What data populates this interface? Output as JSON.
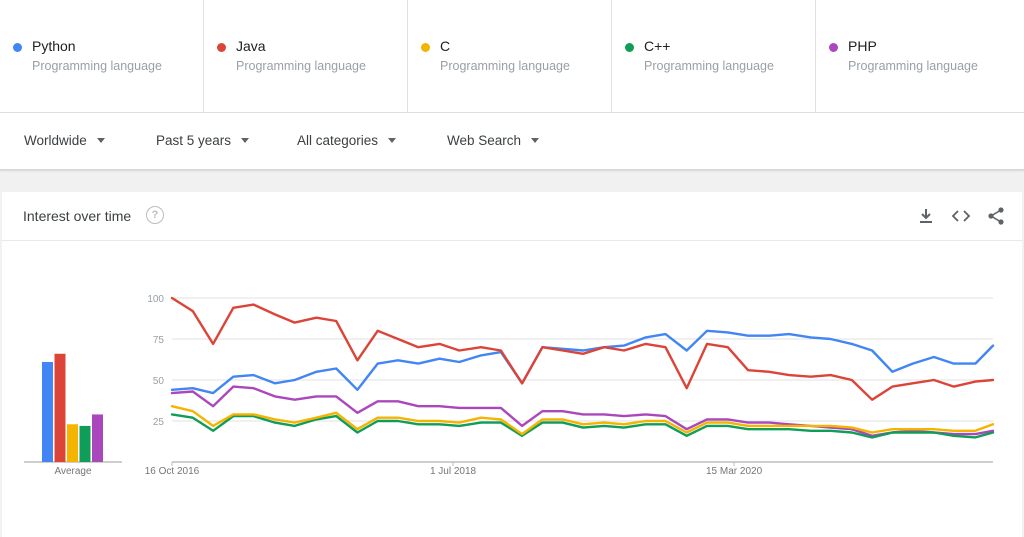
{
  "terms": [
    {
      "name": "Python",
      "category": "Programming language",
      "color": "#4285f4"
    },
    {
      "name": "Java",
      "category": "Programming language",
      "color": "#db4437"
    },
    {
      "name": "C",
      "category": "Programming language",
      "color": "#f4b400"
    },
    {
      "name": "C++",
      "category": "Programming language",
      "color": "#0f9d58"
    },
    {
      "name": "PHP",
      "category": "Programming language",
      "color": "#ab47bc"
    }
  ],
  "filters": {
    "region": "Worldwide",
    "period": "Past 5 years",
    "category": "All categories",
    "property": "Web Search"
  },
  "card": {
    "title": "Interest over time",
    "help_icon": "?",
    "icons": [
      "download-icon",
      "embed-icon",
      "share-icon"
    ]
  },
  "chart_data": [
    {
      "type": "bar",
      "categories": [
        "Python",
        "Java",
        "C",
        "C++",
        "PHP"
      ],
      "values": [
        61,
        66,
        23,
        22,
        29
      ],
      "xlabel": "Average",
      "ylim": [
        0,
        100
      ]
    },
    {
      "type": "line",
      "x_start": "2016-10-16",
      "x_end": "2021-10-10",
      "xticks": [
        "16 Oct 2016",
        "1 Jul 2018",
        "15 Mar 2020"
      ],
      "yticks": [
        25,
        50,
        75,
        100
      ],
      "ylim": [
        0,
        100
      ],
      "grid": true,
      "series": [
        {
          "name": "Python",
          "color": "#4285f4",
          "x": [
            "2016-10-16",
            "2016-12-01",
            "2017-01-15",
            "2017-03-01",
            "2017-04-15",
            "2017-06-01",
            "2017-07-15",
            "2017-09-01",
            "2017-10-15",
            "2017-12-01",
            "2018-01-15",
            "2018-03-01",
            "2018-04-15",
            "2018-06-01",
            "2018-07-15",
            "2018-09-01",
            "2018-10-15",
            "2018-12-01",
            "2019-01-15",
            "2019-03-01",
            "2019-04-15",
            "2019-06-01",
            "2019-07-15",
            "2019-09-01",
            "2019-10-15",
            "2019-12-01",
            "2020-01-15",
            "2020-03-01",
            "2020-04-15",
            "2020-06-01",
            "2020-07-15",
            "2020-09-01",
            "2020-10-15",
            "2020-12-01",
            "2021-01-15",
            "2021-03-01",
            "2021-04-15",
            "2021-06-01",
            "2021-07-15",
            "2021-09-01",
            "2021-10-10"
          ],
          "y": [
            44,
            45,
            42,
            52,
            53,
            48,
            50,
            55,
            57,
            44,
            60,
            62,
            60,
            63,
            61,
            65,
            67,
            48,
            70,
            69,
            68,
            70,
            71,
            76,
            78,
            68,
            80,
            79,
            77,
            77,
            78,
            76,
            75,
            72,
            68,
            55,
            60,
            64,
            60,
            60,
            71
          ]
        },
        {
          "name": "Java",
          "color": "#db4437",
          "x": [
            "2016-10-16",
            "2016-12-01",
            "2017-01-15",
            "2017-03-01",
            "2017-04-15",
            "2017-06-01",
            "2017-07-15",
            "2017-09-01",
            "2017-10-15",
            "2017-12-01",
            "2018-01-15",
            "2018-03-01",
            "2018-04-15",
            "2018-06-01",
            "2018-07-15",
            "2018-09-01",
            "2018-10-15",
            "2018-12-01",
            "2019-01-15",
            "2019-03-01",
            "2019-04-15",
            "2019-06-01",
            "2019-07-15",
            "2019-09-01",
            "2019-10-15",
            "2019-12-01",
            "2020-01-15",
            "2020-03-01",
            "2020-04-15",
            "2020-06-01",
            "2020-07-15",
            "2020-09-01",
            "2020-10-15",
            "2020-12-01",
            "2021-01-15",
            "2021-03-01",
            "2021-04-15",
            "2021-06-01",
            "2021-07-15",
            "2021-09-01",
            "2021-10-10"
          ],
          "y": [
            100,
            92,
            72,
            94,
            96,
            90,
            85,
            88,
            86,
            62,
            80,
            75,
            70,
            72,
            68,
            70,
            68,
            48,
            70,
            68,
            66,
            70,
            68,
            72,
            70,
            45,
            72,
            70,
            56,
            55,
            53,
            52,
            53,
            50,
            38,
            46,
            48,
            50,
            46,
            49,
            50
          ]
        },
        {
          "name": "C",
          "color": "#f4b400",
          "x": [
            "2016-10-16",
            "2016-12-01",
            "2017-01-15",
            "2017-03-01",
            "2017-04-15",
            "2017-06-01",
            "2017-07-15",
            "2017-09-01",
            "2017-10-15",
            "2017-12-01",
            "2018-01-15",
            "2018-03-01",
            "2018-04-15",
            "2018-06-01",
            "2018-07-15",
            "2018-09-01",
            "2018-10-15",
            "2018-12-01",
            "2019-01-15",
            "2019-03-01",
            "2019-04-15",
            "2019-06-01",
            "2019-07-15",
            "2019-09-01",
            "2019-10-15",
            "2019-12-01",
            "2020-01-15",
            "2020-03-01",
            "2020-04-15",
            "2020-06-01",
            "2020-07-15",
            "2020-09-01",
            "2020-10-15",
            "2020-12-01",
            "2021-01-15",
            "2021-03-01",
            "2021-04-15",
            "2021-06-01",
            "2021-07-15",
            "2021-09-01",
            "2021-10-10"
          ],
          "y": [
            34,
            31,
            22,
            29,
            29,
            26,
            24,
            27,
            30,
            20,
            27,
            27,
            25,
            25,
            24,
            27,
            26,
            17,
            26,
            26,
            23,
            24,
            23,
            25,
            25,
            18,
            24,
            24,
            22,
            22,
            22,
            22,
            22,
            21,
            18,
            20,
            20,
            20,
            19,
            19,
            23
          ]
        },
        {
          "name": "C++",
          "color": "#0f9d58",
          "x": [
            "2016-10-16",
            "2016-12-01",
            "2017-01-15",
            "2017-03-01",
            "2017-04-15",
            "2017-06-01",
            "2017-07-15",
            "2017-09-01",
            "2017-10-15",
            "2017-12-01",
            "2018-01-15",
            "2018-03-01",
            "2018-04-15",
            "2018-06-01",
            "2018-07-15",
            "2018-09-01",
            "2018-10-15",
            "2018-12-01",
            "2019-01-15",
            "2019-03-01",
            "2019-04-15",
            "2019-06-01",
            "2019-07-15",
            "2019-09-01",
            "2019-10-15",
            "2019-12-01",
            "2020-01-15",
            "2020-03-01",
            "2020-04-15",
            "2020-06-01",
            "2020-07-15",
            "2020-09-01",
            "2020-10-15",
            "2020-12-01",
            "2021-01-15",
            "2021-03-01",
            "2021-04-15",
            "2021-06-01",
            "2021-07-15",
            "2021-09-01",
            "2021-10-10"
          ],
          "y": [
            29,
            27,
            19,
            28,
            28,
            24,
            22,
            26,
            28,
            18,
            25,
            25,
            23,
            23,
            22,
            24,
            24,
            16,
            24,
            24,
            21,
            22,
            21,
            23,
            23,
            16,
            22,
            22,
            20,
            20,
            20,
            19,
            19,
            18,
            15,
            18,
            18,
            18,
            16,
            15,
            18
          ]
        },
        {
          "name": "PHP",
          "color": "#ab47bc",
          "x": [
            "2016-10-16",
            "2016-12-01",
            "2017-01-15",
            "2017-03-01",
            "2017-04-15",
            "2017-06-01",
            "2017-07-15",
            "2017-09-01",
            "2017-10-15",
            "2017-12-01",
            "2018-01-15",
            "2018-03-01",
            "2018-04-15",
            "2018-06-01",
            "2018-07-15",
            "2018-09-01",
            "2018-10-15",
            "2018-12-01",
            "2019-01-15",
            "2019-03-01",
            "2019-04-15",
            "2019-06-01",
            "2019-07-15",
            "2019-09-01",
            "2019-10-15",
            "2019-12-01",
            "2020-01-15",
            "2020-03-01",
            "2020-04-15",
            "2020-06-01",
            "2020-07-15",
            "2020-09-01",
            "2020-10-15",
            "2020-12-01",
            "2021-01-15",
            "2021-03-01",
            "2021-04-15",
            "2021-06-01",
            "2021-07-15",
            "2021-09-01",
            "2021-10-10"
          ],
          "y": [
            42,
            43,
            34,
            46,
            45,
            40,
            38,
            40,
            40,
            30,
            37,
            37,
            34,
            34,
            33,
            33,
            33,
            22,
            31,
            31,
            29,
            29,
            28,
            29,
            28,
            20,
            26,
            26,
            24,
            24,
            23,
            22,
            21,
            20,
            16,
            18,
            19,
            18,
            17,
            17,
            19
          ]
        }
      ]
    }
  ]
}
